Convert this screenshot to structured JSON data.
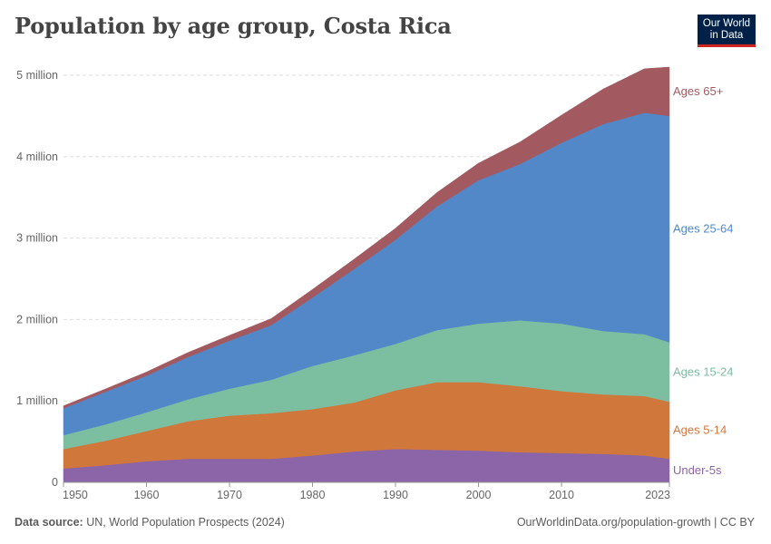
{
  "header": {
    "title": "Population by age group, Costa Rica"
  },
  "logo": {
    "line1": "Our World",
    "line2": "in Data",
    "bg": "#002147",
    "accent": "#ce261e"
  },
  "footer": {
    "source_label": "Data source:",
    "source_text": "UN, World Population Prospects (2024)",
    "right_text": "OurWorldinData.org/population-growth | CC BY"
  },
  "chart_data": {
    "type": "area",
    "stacked": true,
    "title": "Population by age group, Costa Rica",
    "xlabel": "",
    "ylabel": "",
    "x": [
      1950,
      1955,
      1960,
      1965,
      1970,
      1975,
      1980,
      1985,
      1990,
      1995,
      2000,
      2005,
      2010,
      2015,
      2020,
      2023
    ],
    "xlim": [
      1950,
      2023
    ],
    "ylim": [
      0,
      5000000
    ],
    "x_ticks": [
      1950,
      1960,
      1970,
      1980,
      1990,
      2000,
      2010,
      2023
    ],
    "y_ticks": [
      {
        "value": 0,
        "label": "0"
      },
      {
        "value": 1000000,
        "label": "1 million"
      },
      {
        "value": 2000000,
        "label": "2 million"
      },
      {
        "value": 3000000,
        "label": "3 million"
      },
      {
        "value": 4000000,
        "label": "4 million"
      },
      {
        "value": 5000000,
        "label": "5 million"
      }
    ],
    "series": [
      {
        "name": "Under-5s",
        "color": "#8c64a8",
        "values": [
          170000,
          210000,
          260000,
          290000,
          290000,
          290000,
          330000,
          380000,
          410000,
          400000,
          390000,
          370000,
          360000,
          350000,
          330000,
          290000
        ]
      },
      {
        "name": "Ages 5-14",
        "color": "#d0773c",
        "values": [
          240000,
          300000,
          370000,
          460000,
          530000,
          560000,
          570000,
          600000,
          720000,
          830000,
          840000,
          810000,
          760000,
          730000,
          730000,
          700000
        ]
      },
      {
        "name": "Ages 15-24",
        "color": "#7cbea0",
        "values": [
          170000,
          200000,
          230000,
          270000,
          330000,
          410000,
          530000,
          580000,
          570000,
          640000,
          720000,
          810000,
          830000,
          780000,
          760000,
          730000
        ]
      },
      {
        "name": "Ages 25-64",
        "color": "#5288c8",
        "values": [
          330000,
          400000,
          450000,
          520000,
          590000,
          670000,
          840000,
          1060000,
          1280000,
          1520000,
          1760000,
          1920000,
          2220000,
          2540000,
          2720000,
          2780000
        ]
      },
      {
        "name": "Ages 65+",
        "color": "#a25960",
        "values": [
          30000,
          35000,
          45000,
          55000,
          65000,
          80000,
          100000,
          120000,
          140000,
          170000,
          210000,
          270000,
          340000,
          430000,
          540000,
          600000
        ]
      }
    ]
  }
}
